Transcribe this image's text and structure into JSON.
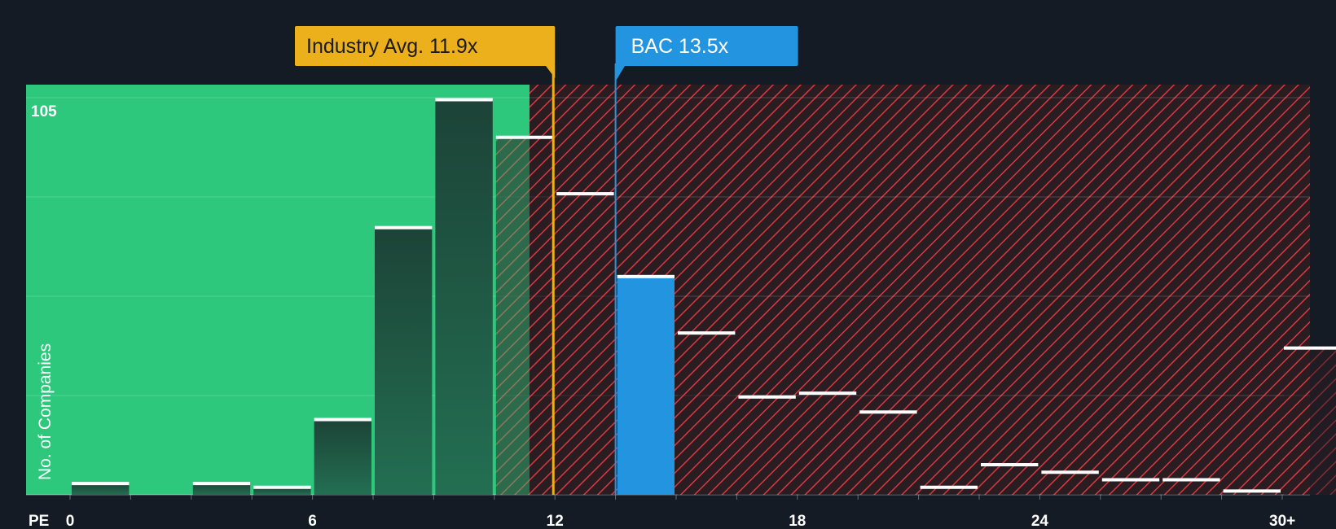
{
  "chart_data": {
    "type": "bar",
    "title": "",
    "xlabel": "PE",
    "ylabel": "No. of Companies",
    "x_ticks": [
      "0",
      "6",
      "12",
      "18",
      "24",
      "30+"
    ],
    "y_top_label": "105",
    "ylim": [
      0,
      109
    ],
    "bins": [
      {
        "label": "0–1.5",
        "value": 3
      },
      {
        "label": "1.5–3",
        "value": 0
      },
      {
        "label": "3–4.5",
        "value": 3
      },
      {
        "label": "4.5–6",
        "value": 2
      },
      {
        "label": "6–7.5",
        "value": 20
      },
      {
        "label": "7.5–9",
        "value": 71
      },
      {
        "label": "9–10.5",
        "value": 105
      },
      {
        "label": "10.5–12",
        "value": 95
      },
      {
        "label": "12–13.5",
        "value": 80
      },
      {
        "label": "13.5–15",
        "value": 58
      },
      {
        "label": "15–16.5",
        "value": 43
      },
      {
        "label": "16.5–18",
        "value": 26
      },
      {
        "label": "18–19.5",
        "value": 27
      },
      {
        "label": "19.5–21",
        "value": 22
      },
      {
        "label": "21–22.5",
        "value": 2
      },
      {
        "label": "22.5–24",
        "value": 8
      },
      {
        "label": "24–25.5",
        "value": 6
      },
      {
        "label": "25.5–27",
        "value": 4
      },
      {
        "label": "27–28.5",
        "value": 4
      },
      {
        "label": "28.5–30",
        "value": 1
      },
      {
        "label": "30+",
        "value": 39
      }
    ],
    "highlight_bin": "13.5–15",
    "industry_avg": {
      "label": "Industry Avg. 11.9x",
      "value": 11.9
    },
    "company": {
      "label": "BAC 13.5x",
      "value": 13.5
    },
    "grid": true,
    "colors": {
      "background": "#151b24",
      "green_zone": "#2ec87d",
      "red_zone": "#2a1d22",
      "hatch": "#d8393f",
      "bar_dark": "#1f4a3d",
      "bar_highlight": "#2394e0",
      "industry": "#ebb01b",
      "company": "#2394e0"
    }
  }
}
